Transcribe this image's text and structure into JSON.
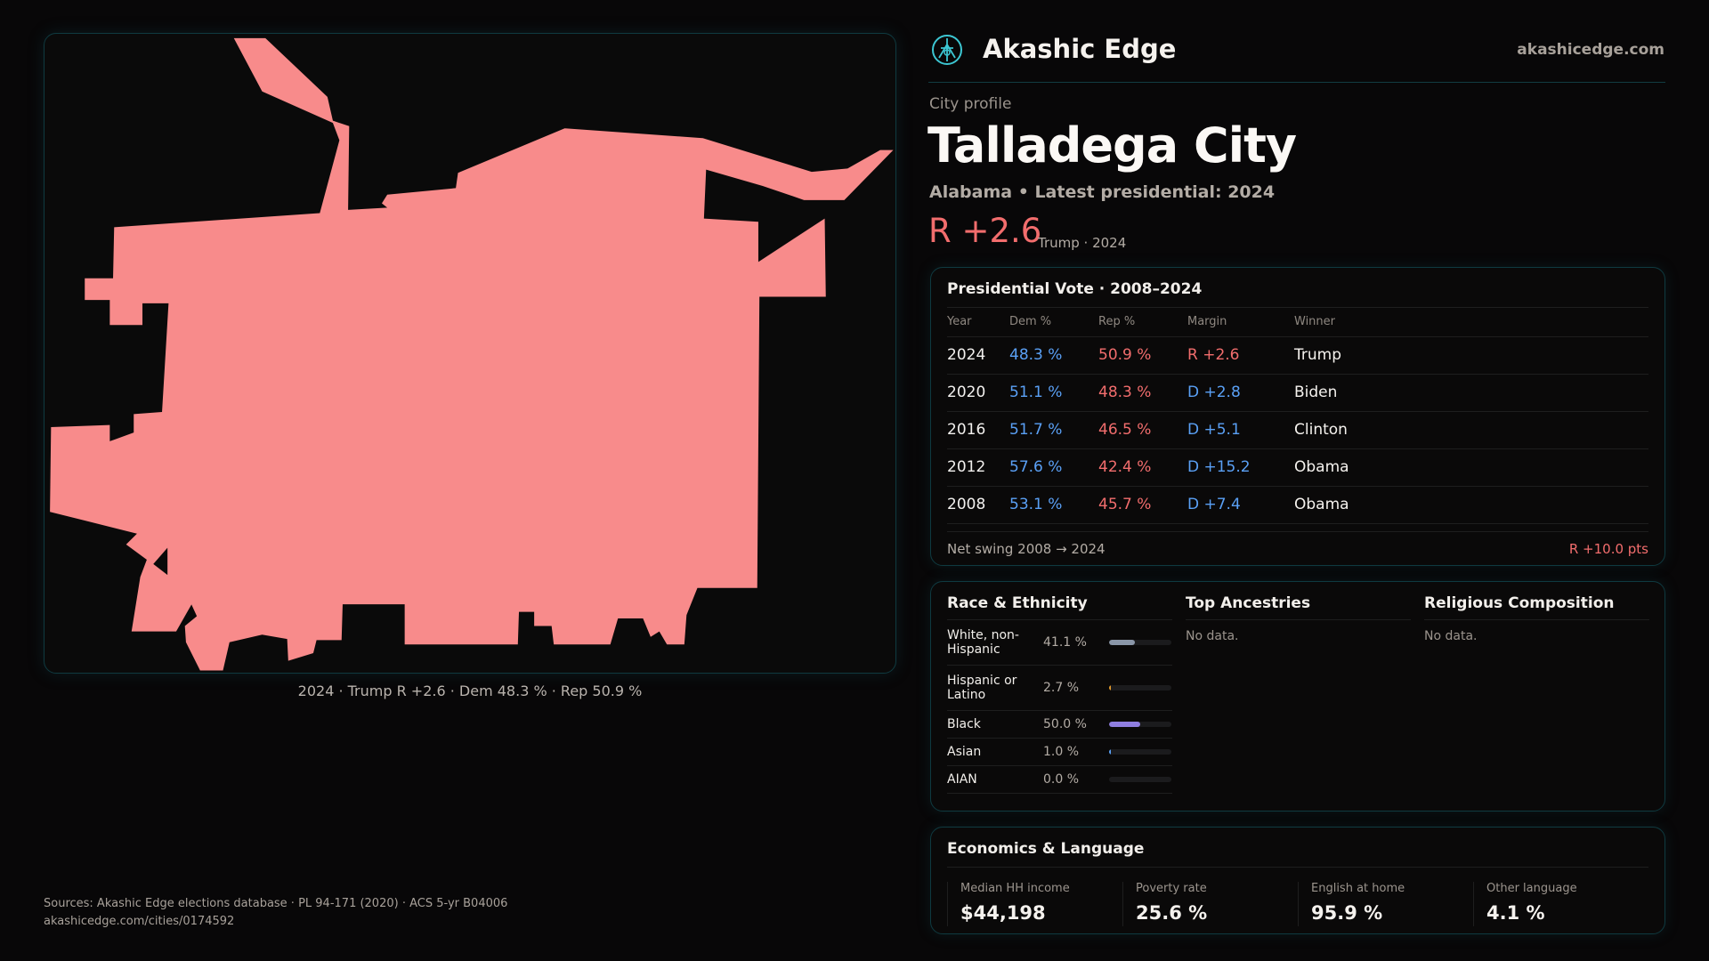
{
  "map": {
    "caption": "2024 · Trump R +2.6 · Dem 48.3 % · Rep 50.9 %",
    "fill": "#f88b8b"
  },
  "header": {
    "brand": "Akashic Edge",
    "site": "akashicedge.com",
    "logo_icon": "akashic-logo-icon"
  },
  "profile": {
    "kicker": "City profile",
    "title": "Talladega City",
    "subtitle": "Alabama • Latest presidential: 2024",
    "margin": "R +2.6",
    "margin_sub": "Trump · 2024"
  },
  "vote": {
    "title": "Presidential Vote · 2008–2024",
    "columns": [
      "Year",
      "Dem %",
      "Rep %",
      "Margin",
      "Winner"
    ],
    "rows": [
      {
        "year": "2024",
        "dem": "48.3 %",
        "rep": "50.9 %",
        "margin": "R +2.6",
        "party": "rep",
        "winner": "Trump"
      },
      {
        "year": "2020",
        "dem": "51.1 %",
        "rep": "48.3 %",
        "margin": "D +2.8",
        "party": "dem",
        "winner": "Biden"
      },
      {
        "year": "2016",
        "dem": "51.7 %",
        "rep": "46.5 %",
        "margin": "D +5.1",
        "party": "dem",
        "winner": "Clinton"
      },
      {
        "year": "2012",
        "dem": "57.6 %",
        "rep": "42.4 %",
        "margin": "D +15.2",
        "party": "dem",
        "winner": "Obama"
      },
      {
        "year": "2008",
        "dem": "53.1 %",
        "rep": "45.7 %",
        "margin": "D +7.4",
        "party": "dem",
        "winner": "Obama"
      }
    ],
    "swing_label": "Net swing 2008 → 2024",
    "swing_value": "R +10.0 pts"
  },
  "race": {
    "title": "Race & Ethnicity",
    "rows": [
      {
        "label": "White, non-Hispanic",
        "pct": "41.1 %",
        "value": 41.1,
        "color": "#8a96a8"
      },
      {
        "label": "Hispanic or Latino",
        "pct": "2.7 %",
        "value": 2.7,
        "color": "#e39a2b"
      },
      {
        "label": "Black",
        "pct": "50.0 %",
        "value": 50.0,
        "color": "#8f7ee0"
      },
      {
        "label": "Asian",
        "pct": "1.0 %",
        "value": 1.0,
        "color": "#5aa0f5"
      },
      {
        "label": "AIAN",
        "pct": "0.0 %",
        "value": 0.0,
        "color": "#5aa0f5"
      }
    ]
  },
  "ancestries": {
    "title": "Top Ancestries",
    "empty": "No data."
  },
  "religion": {
    "title": "Religious Composition",
    "empty": "No data."
  },
  "econ": {
    "title": "Economics & Language",
    "stats": [
      {
        "label": "Median HH income",
        "value": "$44,198"
      },
      {
        "label": "Poverty rate",
        "value": "25.6 %"
      },
      {
        "label": "English at home",
        "value": "95.9 %"
      },
      {
        "label": "Other language",
        "value": "4.1 %"
      }
    ]
  },
  "footer": {
    "sources": "Sources: Akashic Edge elections database · PL 94-171 (2020) · ACS 5-yr B04006",
    "url": "akashicedge.com/cities/0174592"
  }
}
